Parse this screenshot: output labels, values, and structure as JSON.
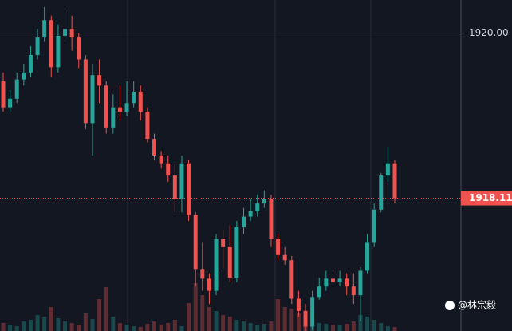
{
  "chart_data": {
    "type": "candlestick",
    "open": [
      1919.45,
      1919.15,
      1919.25,
      1919.47,
      1919.55,
      1919.75,
      1919.95,
      1920.15,
      1919.61,
      1919.97,
      1920.05,
      1919.95,
      1919.7,
      1918.97,
      1919.52,
      1919.4,
      1918.92,
      1919.15,
      1919.1,
      1919.2,
      1919.33,
      1919.1,
      1918.79,
      1918.6,
      1918.51,
      1918.37,
      1918.1,
      1918.51,
      1917.92,
      1917.3,
      1917.19,
      1917.05,
      1917.64,
      1917.55,
      1917.2,
      1917.78,
      1917.9,
      1917.96,
      1918.05,
      1918.1,
      1917.64,
      1917.46,
      1917.4,
      1916.96,
      1916.82,
      1916.64,
      1916.98,
      1917.1,
      1917.19,
      1917.15,
      1917.19,
      1917.1,
      1917.0,
      1917.28,
      1917.6,
      1917.98,
      1918.37,
      1918.51
    ],
    "high": [
      1919.55,
      1919.35,
      1919.55,
      1919.65,
      1919.85,
      1920.05,
      1920.3,
      1920.2,
      1920.1,
      1920.25,
      1920.2,
      1920.0,
      1919.75,
      1919.65,
      1919.7,
      1919.45,
      1919.3,
      1919.4,
      1919.45,
      1919.45,
      1919.4,
      1919.15,
      1918.85,
      1918.65,
      1918.6,
      1918.5,
      1918.6,
      1918.55,
      1917.95,
      1917.6,
      1917.25,
      1917.7,
      1917.75,
      1917.8,
      1917.85,
      1918.0,
      1918.1,
      1918.15,
      1918.2,
      1918.15,
      1917.7,
      1917.55,
      1917.45,
      1917.05,
      1916.9,
      1917.05,
      1917.2,
      1917.28,
      1917.25,
      1917.28,
      1917.25,
      1917.25,
      1917.32,
      1917.7,
      1918.05,
      1918.4,
      1918.7,
      1918.55
    ],
    "low": [
      1919.1,
      1919.1,
      1919.2,
      1919.4,
      1919.5,
      1919.7,
      1919.9,
      1919.5,
      1919.55,
      1919.9,
      1919.8,
      1919.6,
      1918.9,
      1918.6,
      1919.2,
      1918.85,
      1918.85,
      1919.0,
      1919.05,
      1919.15,
      1919.0,
      1918.75,
      1918.55,
      1918.45,
      1918.3,
      1917.95,
      1917.95,
      1917.85,
      1917.1,
      1917.05,
      1916.9,
      1917.0,
      1917.3,
      1917.15,
      1917.15,
      1917.7,
      1917.85,
      1917.9,
      1918.0,
      1917.55,
      1917.4,
      1917.35,
      1916.9,
      1916.75,
      1916.55,
      1916.6,
      1916.95,
      1917.05,
      1917.1,
      1917.1,
      1917.0,
      1916.9,
      1916.7,
      1917.25,
      1917.55,
      1917.95,
      1918.3,
      1918.05
    ],
    "close": [
      1919.15,
      1919.25,
      1919.47,
      1919.55,
      1919.75,
      1919.95,
      1920.15,
      1919.61,
      1919.97,
      1920.05,
      1919.95,
      1919.7,
      1918.97,
      1919.52,
      1919.4,
      1918.92,
      1919.15,
      1919.1,
      1919.2,
      1919.33,
      1919.1,
      1918.79,
      1918.6,
      1918.51,
      1918.37,
      1918.1,
      1918.51,
      1917.92,
      1917.3,
      1917.19,
      1917.05,
      1917.64,
      1917.55,
      1917.2,
      1917.78,
      1917.9,
      1917.96,
      1918.05,
      1918.1,
      1917.64,
      1917.46,
      1917.4,
      1916.96,
      1916.82,
      1916.64,
      1916.98,
      1917.1,
      1917.19,
      1917.15,
      1917.19,
      1917.1,
      1917.0,
      1917.28,
      1917.6,
      1917.98,
      1918.37,
      1918.51,
      1918.11
    ],
    "volume": [
      10,
      8,
      6,
      12,
      14,
      20,
      18,
      30,
      16,
      12,
      10,
      8,
      22,
      15,
      40,
      55,
      18,
      10,
      8,
      6,
      5,
      9,
      12,
      8,
      10,
      14,
      6,
      35,
      60,
      45,
      30,
      25,
      20,
      18,
      14,
      12,
      10,
      8,
      9,
      12,
      40,
      30,
      28,
      22,
      20,
      14,
      10,
      9,
      8,
      7,
      9,
      12,
      20,
      18,
      14,
      10,
      6,
      5
    ],
    "up_color": "#26a69a",
    "down_color": "#ef5350",
    "ylim": [
      1916.59,
      1920.38
    ],
    "yticks": [
      {
        "value": 1920,
        "label": "1920.00"
      }
    ],
    "grid": true,
    "last_price": {
      "value": 1918.11,
      "label": "1918.11"
    },
    "watermark": "@林宗毅"
  }
}
